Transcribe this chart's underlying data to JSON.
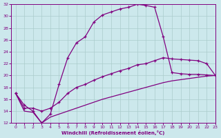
{
  "xlabel": "Windchill (Refroidissement éolien,°C)",
  "bg_color": "#cce8ec",
  "line_color": "#800080",
  "grid_color": "#aacccc",
  "ylim": [
    12,
    32
  ],
  "xlim": [
    -0.5,
    23
  ],
  "yticks": [
    12,
    14,
    16,
    18,
    20,
    22,
    24,
    26,
    28,
    30,
    32
  ],
  "xticks": [
    0,
    1,
    2,
    3,
    4,
    5,
    6,
    7,
    8,
    9,
    10,
    11,
    12,
    13,
    14,
    15,
    16,
    17,
    18,
    19,
    20,
    21,
    22,
    23
  ],
  "curve1_x": [
    0,
    1,
    2,
    3,
    4,
    5,
    6,
    7,
    8,
    9,
    10,
    11,
    12,
    13,
    14,
    15,
    16,
    17,
    18,
    19,
    20,
    21,
    22,
    23
  ],
  "curve1_y": [
    17.0,
    15.0,
    14.0,
    12.0,
    13.5,
    18.5,
    23.0,
    25.5,
    26.5,
    29.0,
    30.2,
    30.7,
    31.2,
    31.5,
    32.0,
    31.8,
    31.5,
    26.5,
    20.5,
    20.3,
    20.2,
    20.2,
    20.1,
    20.0
  ],
  "curve2_x": [
    0,
    1,
    2,
    3,
    4,
    5,
    6,
    7,
    8,
    9,
    10,
    11,
    12,
    13,
    14,
    15,
    16,
    17,
    18,
    19,
    20,
    21,
    22,
    23
  ],
  "curve2_y": [
    17.0,
    14.5,
    14.5,
    14.0,
    14.5,
    15.5,
    17.0,
    18.0,
    18.5,
    19.2,
    19.8,
    20.3,
    20.8,
    21.2,
    21.8,
    22.0,
    22.5,
    23.0,
    22.8,
    22.7,
    22.6,
    22.5,
    22.0,
    20.0
  ],
  "curve3_x": [
    0,
    1,
    2,
    3,
    4,
    5,
    6,
    7,
    8,
    9,
    10,
    11,
    12,
    13,
    14,
    15,
    16,
    17,
    18,
    19,
    20,
    21,
    22,
    23
  ],
  "curve3_y": [
    17.0,
    14.0,
    13.8,
    12.0,
    13.0,
    13.5,
    14.0,
    14.5,
    15.0,
    15.5,
    16.0,
    16.4,
    16.8,
    17.2,
    17.6,
    18.0,
    18.4,
    18.8,
    19.1,
    19.3,
    19.5,
    19.7,
    19.9,
    20.0
  ]
}
